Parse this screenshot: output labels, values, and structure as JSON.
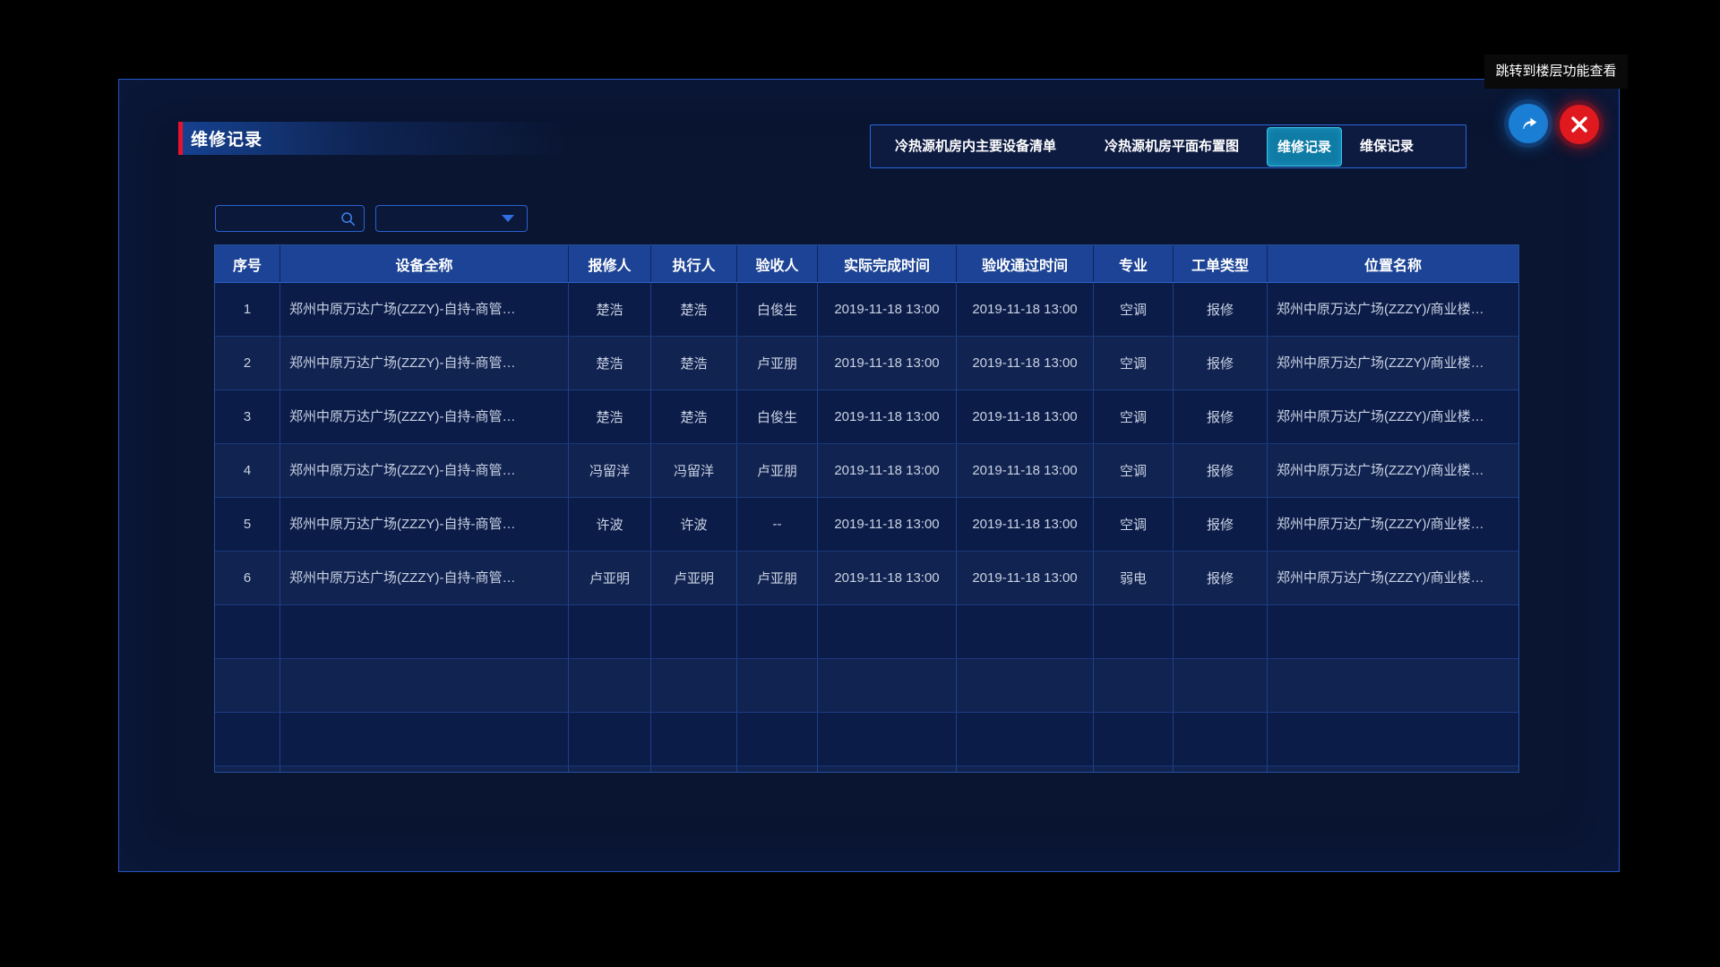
{
  "tooltip": {
    "text": "跳转到楼层功能查看"
  },
  "panel": {
    "title": "维修记录"
  },
  "tabs": [
    {
      "label": "冷热源机房内主要设备清单",
      "active": false
    },
    {
      "label": "冷热源机房平面布置图",
      "active": false
    },
    {
      "label": "维修记录",
      "active": true
    },
    {
      "label": "维保记录",
      "active": false
    }
  ],
  "header_buttons": [
    {
      "icon": "share-icon"
    },
    {
      "icon": "close-icon"
    }
  ],
  "filters": {
    "search_value": "",
    "search_placeholder": "",
    "search_icon": "search-icon",
    "dropdown_value": "",
    "dropdown_icon": "chevron-down-icon"
  },
  "table": {
    "columns": [
      "序号",
      "设备全称",
      "报修人",
      "执行人",
      "验收人",
      "实际完成时间",
      "验收通过时间",
      "专业",
      "工单类型",
      "位置名称"
    ],
    "rows": [
      [
        "1",
        "郑州中原万达广场(ZZZY)-自持-商管…",
        "楚浩",
        "楚浩",
        "白俊生",
        "2019-11-18 13:00",
        "2019-11-18 13:00",
        "空调",
        "报修",
        "郑州中原万达广场(ZZZY)/商业楼…"
      ],
      [
        "2",
        "郑州中原万达广场(ZZZY)-自持-商管…",
        "楚浩",
        "楚浩",
        "卢亚朋",
        "2019-11-18 13:00",
        "2019-11-18 13:00",
        "空调",
        "报修",
        "郑州中原万达广场(ZZZY)/商业楼…"
      ],
      [
        "3",
        "郑州中原万达广场(ZZZY)-自持-商管…",
        "楚浩",
        "楚浩",
        "白俊生",
        "2019-11-18 13:00",
        "2019-11-18 13:00",
        "空调",
        "报修",
        "郑州中原万达广场(ZZZY)/商业楼…"
      ],
      [
        "4",
        "郑州中原万达广场(ZZZY)-自持-商管…",
        "冯留洋",
        "冯留洋",
        "卢亚朋",
        "2019-11-18 13:00",
        "2019-11-18 13:00",
        "空调",
        "报修",
        "郑州中原万达广场(ZZZY)/商业楼…"
      ],
      [
        "5",
        "郑州中原万达广场(ZZZY)-自持-商管…",
        "许波",
        "许波",
        "--",
        "2019-11-18 13:00",
        "2019-11-18 13:00",
        "空调",
        "报修",
        "郑州中原万达广场(ZZZY)/商业楼…"
      ],
      [
        "6",
        "郑州中原万达广场(ZZZY)-自持-商管…",
        "卢亚明",
        "卢亚明",
        "卢亚朋",
        "2019-11-18 13:00",
        "2019-11-18 13:00",
        "弱电",
        "报修",
        "郑州中原万达广场(ZZZY)/商业楼…"
      ]
    ],
    "empty_row_count": 4
  },
  "colors": {
    "accent_red": "#e8122d",
    "panel_border": "#2457c8",
    "active_tab_bg": "#0f7ca6",
    "active_tab_border": "#38c4ec",
    "share_button": "#1a7fd4",
    "close_button": "#e0191f",
    "table_header_bg": "#1c4395",
    "row_dark": "#0c1c48",
    "row_light": "#112350"
  }
}
